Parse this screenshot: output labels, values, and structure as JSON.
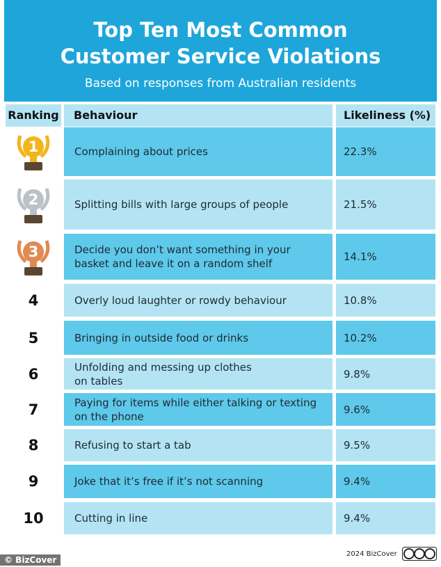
{
  "header": {
    "title_lines": [
      "Top Ten Most Common",
      "Customer Service Violations"
    ],
    "subtitle": "Based on responses from Australian residents"
  },
  "table": {
    "columns": [
      "Ranking",
      "Behaviour",
      "Likeliness (%)"
    ],
    "rows": [
      [
        "1",
        "Complaining about prices",
        "22.3%"
      ],
      [
        "2",
        "Splitting bills with large groups of people",
        "21.5%"
      ],
      [
        "3",
        "Decide you don’t want something in your\nbasket and leave it on a random shelf",
        "14.1%"
      ],
      [
        "4",
        "Overly loud laughter or rowdy behaviour",
        "10.8%"
      ],
      [
        "5",
        "Bringing in outside food or drinks",
        "10.2%"
      ],
      [
        "6",
        "Unfolding and messing up clothes\non tables",
        "9.8%"
      ],
      [
        "7",
        "Paying for items while either talking or texting\non the phone",
        "9.6%"
      ],
      [
        "8",
        "Refusing to start a tab",
        "9.5%"
      ],
      [
        "9",
        "Joke that it’s free if it’s not scanning",
        "9.4%"
      ],
      [
        "10",
        "Cutting in line",
        "9.4%"
      ]
    ]
  },
  "footer": {
    "credit": "2024 BizCover",
    "watermark": "© BizCover"
  }
}
